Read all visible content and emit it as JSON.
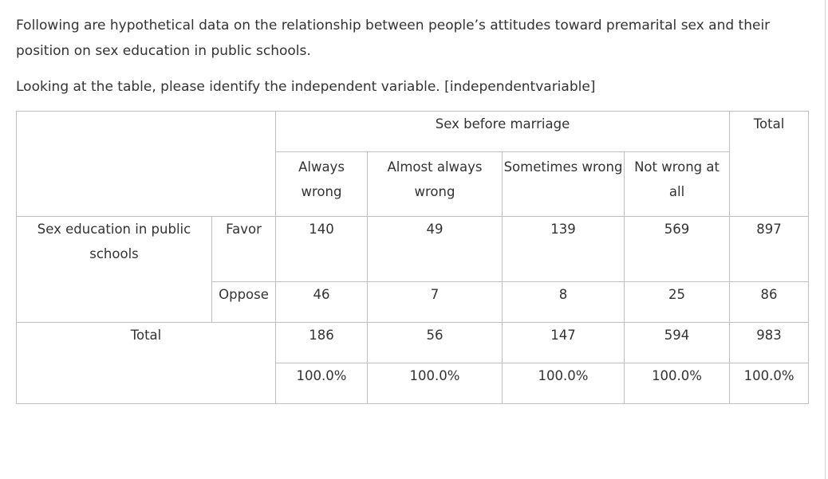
{
  "question": {
    "line": "Following are hypothetical data on the relationship between people’s attitudes toward premarital sex and their position on sex education in public schools.",
    "prompt": "Looking at the table, please identify the independent variable. [independentvariable]"
  },
  "table": {
    "column_group": "Sex before marriage",
    "columns": [
      "Always wrong",
      "Almost always wrong",
      "Sometimes wrong",
      "Not wrong at all"
    ],
    "total_header": "Total",
    "row_group": "Sex education in public schools",
    "rows": [
      {
        "label": "Favor",
        "values": [
          "140",
          "49",
          "139",
          "569"
        ],
        "total": "897"
      },
      {
        "label": "Oppose",
        "values": [
          "46",
          "7",
          "8",
          "25"
        ],
        "total": "86"
      }
    ],
    "total_row": {
      "label": "Total",
      "counts": [
        "186",
        "56",
        "147",
        "594"
      ],
      "count_total": "983",
      "percents": [
        "100.0%",
        "100.0%",
        "100.0%",
        "100.0%"
      ],
      "percent_total": "100.0%"
    }
  }
}
